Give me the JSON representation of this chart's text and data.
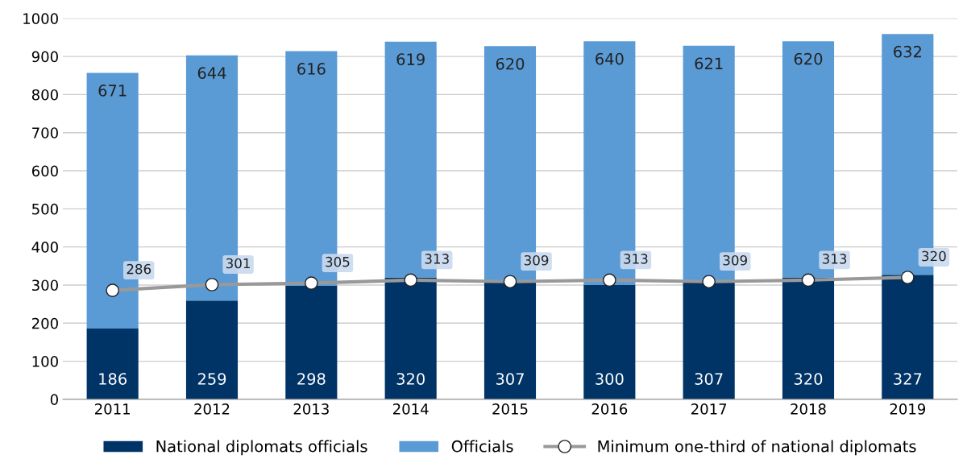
{
  "chart_data": {
    "type": "bar",
    "stacked": true,
    "categories": [
      "2011",
      "2012",
      "2013",
      "2014",
      "2015",
      "2016",
      "2017",
      "2018",
      "2019"
    ],
    "series": [
      {
        "name": "National diplomats officials",
        "color": "#003366",
        "values": [
          186,
          259,
          298,
          320,
          307,
          300,
          307,
          320,
          327
        ]
      },
      {
        "name": "Officials",
        "color": "#5b9bd5",
        "values": [
          671,
          644,
          616,
          619,
          620,
          640,
          621,
          620,
          632
        ]
      },
      {
        "name": "Minimum one-third of national diplomats",
        "type": "line",
        "color": "#999999",
        "marker": "circle",
        "values": [
          286,
          301,
          305,
          313,
          309,
          313,
          309,
          313,
          320
        ]
      }
    ],
    "ylim": [
      0,
      1000
    ],
    "yticks": [
      0,
      100,
      200,
      300,
      400,
      500,
      600,
      700,
      800,
      900,
      1000
    ],
    "grid": "y",
    "legend": "bottom",
    "data_labels": true
  }
}
